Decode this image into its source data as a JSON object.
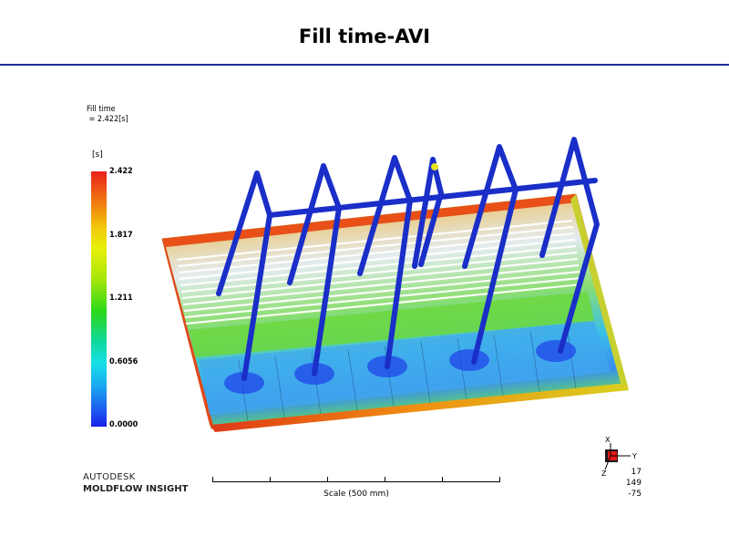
{
  "page": {
    "title": "Fill time-AVI"
  },
  "result": {
    "name_line": "Fill time",
    "value_line": " = 2.422[s]"
  },
  "legend": {
    "unit": "[s]",
    "ticks": [
      "2.422",
      "1.817",
      "1.211",
      "0.6056",
      "0.0000"
    ]
  },
  "brand": {
    "line1": "AUTODESK",
    "line2": "MOLDFLOW INSIGHT"
  },
  "scale": {
    "label": "Scale (500 mm)"
  },
  "triad": {
    "values": [
      "17",
      "149",
      "-75"
    ],
    "axes": [
      "X",
      "Y",
      "Z"
    ]
  }
}
